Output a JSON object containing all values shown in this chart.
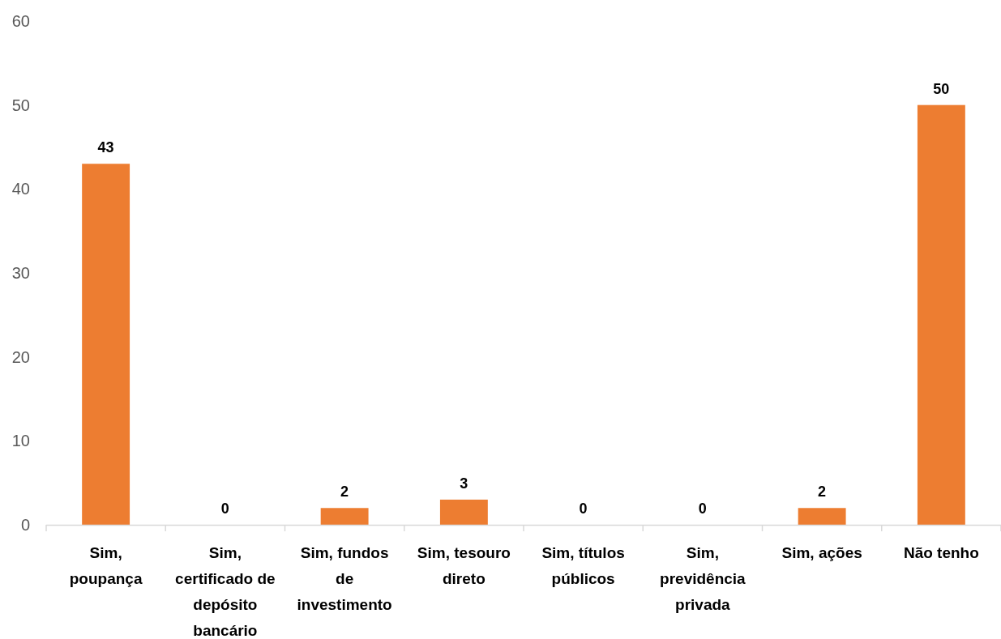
{
  "chart_data": {
    "type": "bar",
    "categories": [
      "Sim, poupança",
      "Sim, certificado de depósito bancário",
      "Sim, fundos de investimento",
      "Sim, tesouro direto",
      "Sim, títulos públicos",
      "Sim, previdência privada",
      "Sim, ações",
      "Não tenho"
    ],
    "values": [
      43,
      0,
      2,
      3,
      0,
      0,
      2,
      50
    ],
    "color": "#ed7d31",
    "ylim": [
      0,
      60
    ],
    "yticks": [
      0,
      10,
      20,
      30,
      40,
      50,
      60
    ],
    "data_labels": true
  }
}
